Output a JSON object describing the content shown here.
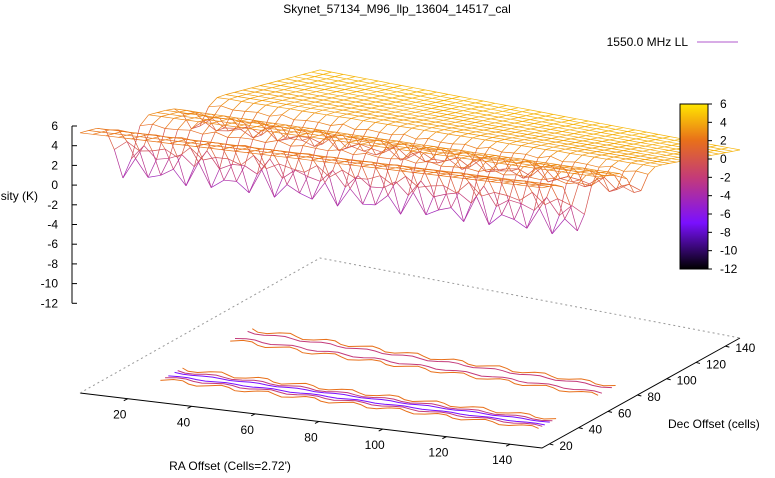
{
  "chart_data": {
    "type": "surface3d",
    "title": "Skynet_57134_M96_llp_13604_14517_cal",
    "legend": {
      "label": "1550.0 MHz LL",
      "position": "top-right"
    },
    "xlabel": "RA Offset (Cells=2.72')",
    "ylabel": "Dec Offset (cells)",
    "zlabel": "Intensity (K)",
    "xticks": [
      "20",
      "40",
      "60",
      "80",
      "100",
      "120",
      "140"
    ],
    "yticks": [
      "20",
      "40",
      "60",
      "80",
      "100",
      "120",
      "140"
    ],
    "zticks": [
      "6",
      "4",
      "2",
      "0",
      "-2",
      "-4",
      "-6",
      "-8",
      "-10",
      "-12"
    ],
    "colorbar": {
      "ticks": [
        "6",
        "4",
        "2",
        "0",
        "-2",
        "-4",
        "-6",
        "-8",
        "-10",
        "-12"
      ],
      "range": [
        -12,
        6
      ],
      "colors": [
        "#000000",
        "#7a10ff",
        "#c33a7a",
        "#e8701a",
        "#ffe600"
      ]
    },
    "xlim": [
      5,
      150
    ],
    "ylim": [
      15,
      150
    ],
    "zlim": [
      -12,
      6
    ],
    "contours": "base",
    "grid": false
  }
}
